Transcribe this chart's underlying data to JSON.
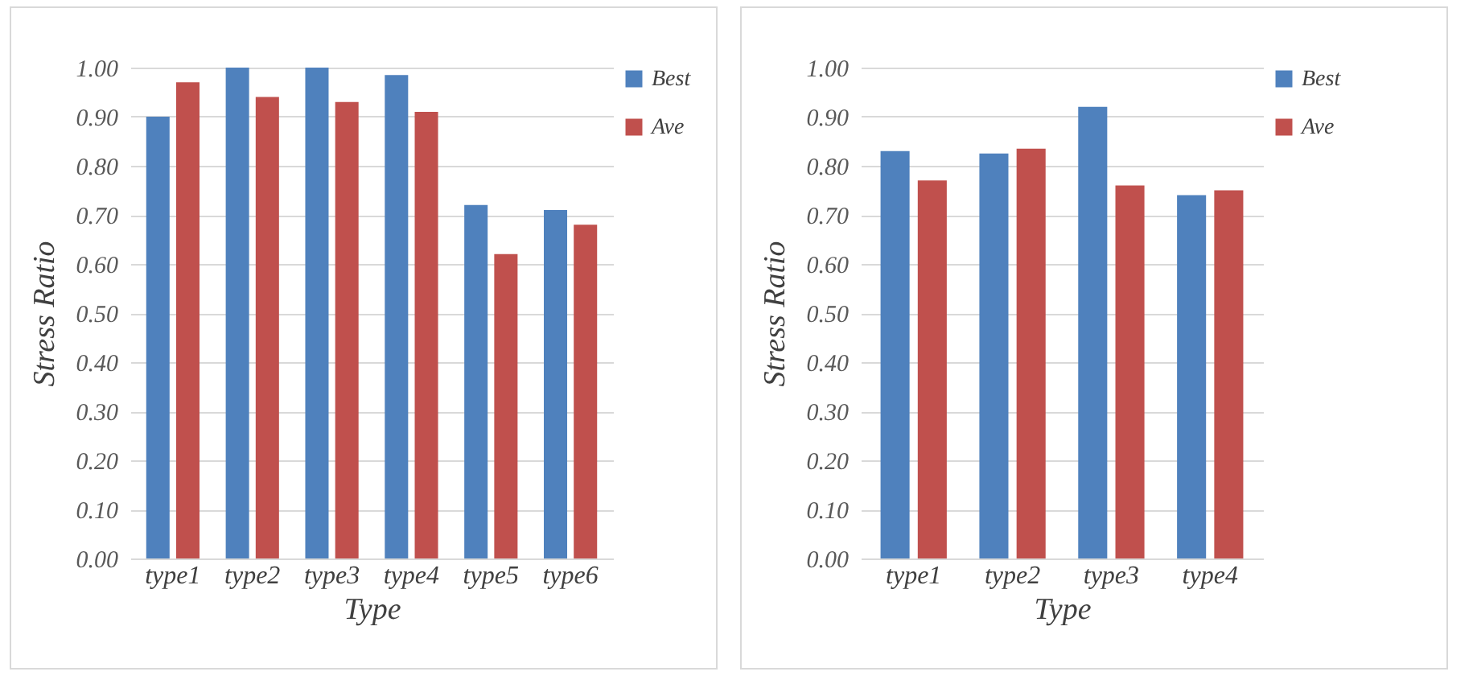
{
  "chart_data": [
    {
      "type": "bar",
      "xlabel": "Type",
      "ylabel": "Stress Ratio",
      "categories": [
        "type1",
        "type2",
        "type3",
        "type4",
        "type5",
        "type6"
      ],
      "series": [
        {
          "name": "Best",
          "color": "#4f81bd",
          "values": [
            0.9,
            1.0,
            1.0,
            0.985,
            0.72,
            0.71
          ]
        },
        {
          "name": "Ave",
          "color": "#c0504d",
          "values": [
            0.97,
            0.94,
            0.93,
            0.91,
            0.62,
            0.68
          ]
        }
      ],
      "ylim": [
        0,
        1
      ],
      "yticks": [
        {
          "value": 0,
          "label": "0.00"
        },
        {
          "value": 0.1,
          "label": "0.10"
        },
        {
          "value": 0.2,
          "label": "0.20"
        },
        {
          "value": 0.3,
          "label": "0.30"
        },
        {
          "value": 0.4,
          "label": "0.40"
        },
        {
          "value": 0.5,
          "label": "0.50"
        },
        {
          "value": 0.6,
          "label": "0.60"
        },
        {
          "value": 0.7,
          "label": "0.70"
        },
        {
          "value": 0.8,
          "label": "0.80"
        },
        {
          "value": 0.9,
          "label": "0.90"
        },
        {
          "value": 1,
          "label": "1.00"
        }
      ],
      "grid": "y",
      "legend": "right"
    },
    {
      "type": "bar",
      "xlabel": "Type",
      "ylabel": "Stress Ratio",
      "categories": [
        "type1",
        "type2",
        "type3",
        "type4"
      ],
      "series": [
        {
          "name": "Best",
          "color": "#4f81bd",
          "values": [
            0.83,
            0.825,
            0.92,
            0.74
          ]
        },
        {
          "name": "Ave",
          "color": "#c0504d",
          "values": [
            0.77,
            0.835,
            0.76,
            0.75
          ]
        }
      ],
      "ylim": [
        0,
        1
      ],
      "yticks": [
        {
          "value": 0,
          "label": "0.00"
        },
        {
          "value": 0.1,
          "label": "0.10"
        },
        {
          "value": 0.2,
          "label": "0.20"
        },
        {
          "value": 0.3,
          "label": "0.30"
        },
        {
          "value": 0.4,
          "label": "0.40"
        },
        {
          "value": 0.5,
          "label": "0.50"
        },
        {
          "value": 0.6,
          "label": "0.60"
        },
        {
          "value": 0.7,
          "label": "0.70"
        },
        {
          "value": 0.8,
          "label": "0.80"
        },
        {
          "value": 0.9,
          "label": "0.90"
        },
        {
          "value": 1,
          "label": "1.00"
        }
      ],
      "grid": "y",
      "legend": "right"
    }
  ]
}
